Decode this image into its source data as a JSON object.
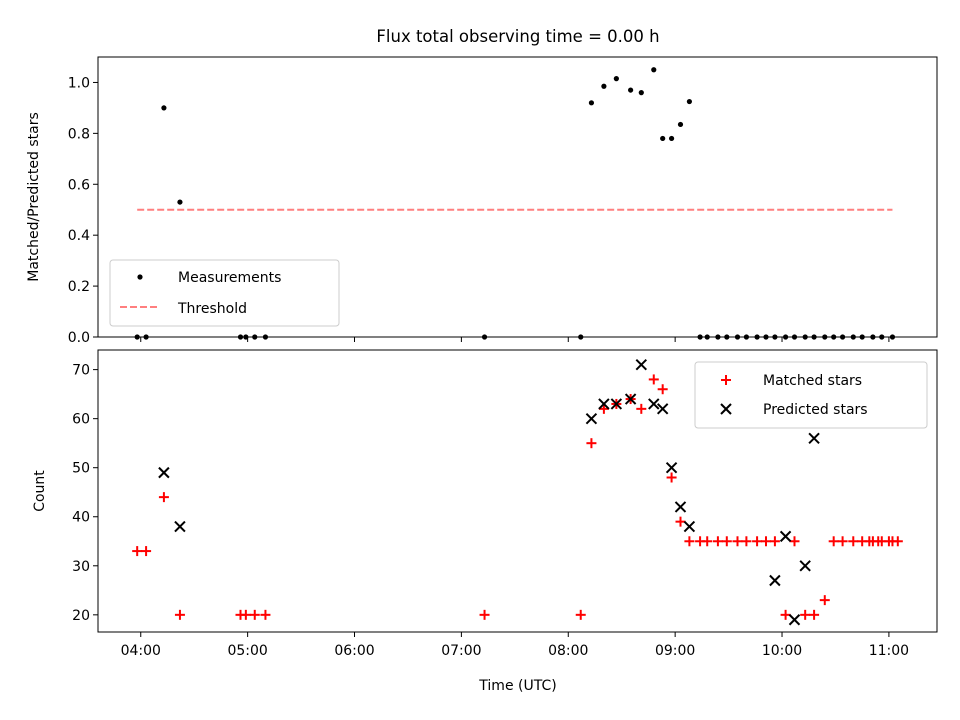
{
  "title": "Flux total observing time = 0.00 h",
  "colors": {
    "measurement": "#000000",
    "threshold": "#ff7f7f",
    "matched": "#ff0000",
    "predicted": "#000000"
  },
  "chart_data": [
    {
      "type": "scatter",
      "ylabel": "Matched/Predicted stars",
      "xlim_hours": [
        3.6,
        11.45
      ],
      "ylim": [
        0,
        1.1
      ],
      "yticks": [
        0.0,
        0.2,
        0.4,
        0.6,
        0.8,
        1.0
      ],
      "ytick_labels": [
        "0.0",
        "0.2",
        "0.4",
        "0.6",
        "0.8",
        "1.0"
      ],
      "legend": {
        "placement": "lower-left",
        "entries": [
          "Measurements",
          "Threshold"
        ]
      },
      "threshold": {
        "name": "Threshold",
        "y": 0.5,
        "x": [
          "03:58",
          "11:02"
        ]
      },
      "series": [
        {
          "name": "Measurements",
          "x": [
            "03:58",
            "04:03",
            "04:13",
            "04:22",
            "04:56",
            "04:59",
            "05:04",
            "05:10",
            "07:13",
            "08:07",
            "08:13",
            "08:20",
            "08:27",
            "08:35",
            "08:41",
            "08:48",
            "08:53",
            "08:58",
            "09:03",
            "09:08",
            "09:14",
            "09:18",
            "09:24",
            "09:29",
            "09:35",
            "09:40",
            "09:46",
            "09:51",
            "09:56",
            "10:02",
            "10:07",
            "10:13",
            "10:18",
            "10:24",
            "10:29",
            "10:34",
            "10:40",
            "10:45",
            "10:51",
            "10:56",
            "11:02"
          ],
          "y": [
            0,
            0,
            0.9,
            0.53,
            0,
            0,
            0,
            0,
            0,
            0,
            0.92,
            0.985,
            1.015,
            0.97,
            0.96,
            1.05,
            0.78,
            0.78,
            0.835,
            0.925,
            0,
            0,
            0,
            0,
            0,
            0,
            0,
            0,
            0,
            0,
            0,
            0,
            0,
            0,
            0,
            0,
            0,
            0,
            0,
            0,
            0
          ]
        }
      ]
    },
    {
      "type": "scatter",
      "xlabel": "Time (UTC)",
      "ylabel": "Count",
      "xlim_hours": [
        3.6,
        11.45
      ],
      "ylim": [
        16.5,
        74
      ],
      "xticks": [
        "04:00",
        "05:00",
        "06:00",
        "07:00",
        "08:00",
        "09:00",
        "10:00",
        "11:00"
      ],
      "yticks": [
        20,
        30,
        40,
        50,
        60,
        70
      ],
      "ytick_labels": [
        "20",
        "30",
        "40",
        "50",
        "60",
        "70"
      ],
      "legend": {
        "placement": "upper-right",
        "entries": [
          "Matched stars",
          "Predicted stars"
        ]
      },
      "series": [
        {
          "name": "Matched stars",
          "x": [
            "03:58",
            "04:03",
            "04:13",
            "04:22",
            "04:56",
            "04:59",
            "05:04",
            "05:10",
            "07:13",
            "08:07",
            "08:13",
            "08:20",
            "08:27",
            "08:35",
            "08:41",
            "08:48",
            "08:53",
            "08:58",
            "09:03",
            "09:08",
            "09:14",
            "09:18",
            "09:24",
            "09:29",
            "09:35",
            "09:40",
            "09:46",
            "09:51",
            "09:56",
            "10:02",
            "10:07",
            "10:13",
            "10:18",
            "10:24",
            "10:29",
            "10:34",
            "10:40",
            "10:45",
            "10:51",
            "10:56",
            "11:02",
            "10:49",
            "10:54",
            "11:00",
            "11:05"
          ],
          "y": [
            33,
            33,
            44,
            20,
            20,
            20,
            20,
            20,
            20,
            20,
            55,
            62,
            63,
            64,
            62,
            68,
            66,
            48,
            39,
            35,
            35,
            35,
            35,
            35,
            35,
            35,
            35,
            35,
            35,
            20,
            35,
            20,
            20,
            23,
            35,
            35,
            35,
            35,
            35,
            35,
            35,
            35,
            35,
            35,
            35
          ]
        },
        {
          "name": "Predicted stars",
          "x": [
            "04:13",
            "04:22",
            "08:13",
            "08:20",
            "08:27",
            "08:35",
            "08:41",
            "08:48",
            "08:53",
            "08:58",
            "09:03",
            "09:08",
            "09:56",
            "10:02",
            "10:07",
            "10:13",
            "10:18"
          ],
          "y": [
            49,
            38,
            60,
            63,
            63,
            64,
            71,
            63,
            62,
            50,
            42,
            38,
            27,
            36,
            19,
            30,
            56
          ]
        }
      ]
    }
  ]
}
